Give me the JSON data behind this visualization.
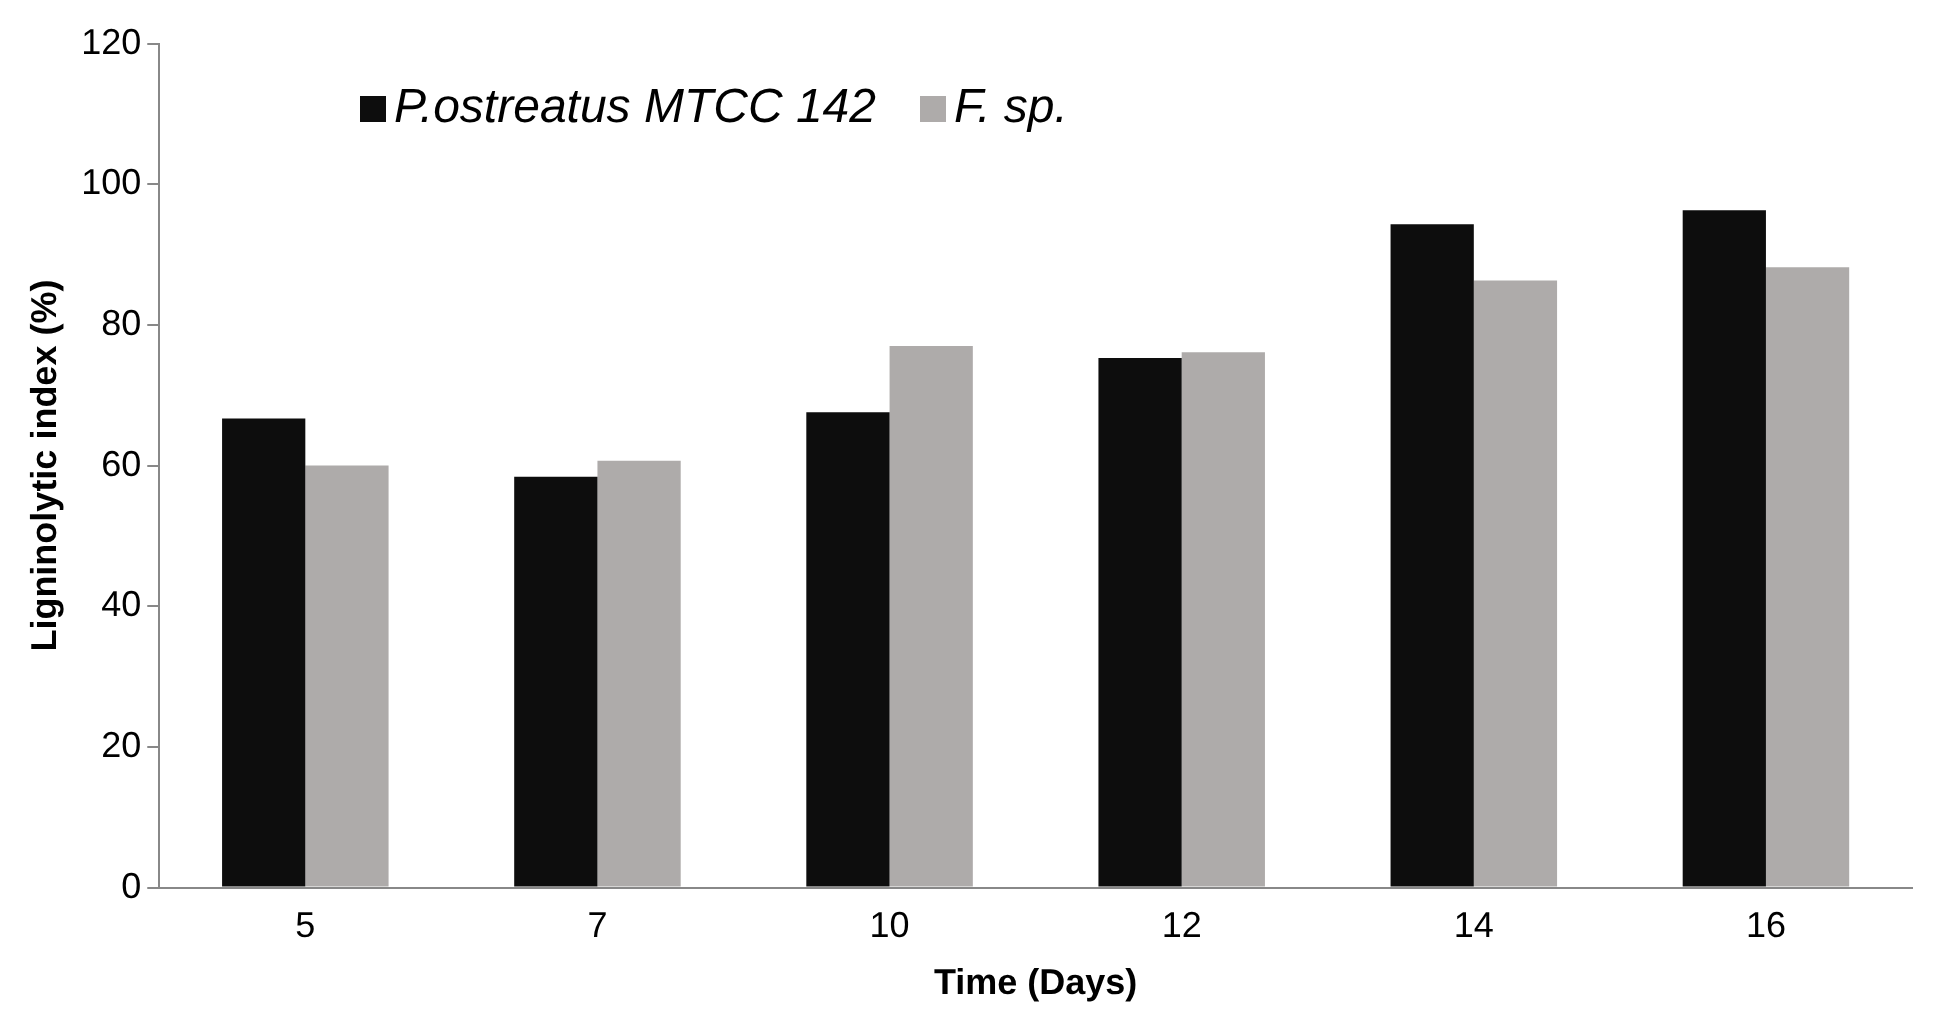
{
  "chart_data": {
    "type": "bar",
    "xlabel": "Time (Days)",
    "ylabel": "Ligninolytic index (%)",
    "categories": [
      "5",
      "7",
      "10",
      "12",
      "14",
      "16"
    ],
    "series": [
      {
        "name": "P.ostreatus MTCC 142",
        "color": "#0d0d0d",
        "values": [
          66.7,
          58.4,
          67.6,
          75.3,
          94.3,
          96.3
        ]
      },
      {
        "name": "F. sp.",
        "color": "#aeabaa",
        "values": [
          60.0,
          60.7,
          77.0,
          76.1,
          86.3,
          88.2
        ]
      }
    ],
    "ylim": [
      0,
      120
    ],
    "yticks": [
      0,
      20,
      40,
      60,
      80,
      100,
      120
    ],
    "grid": false,
    "legend": "top left"
  }
}
